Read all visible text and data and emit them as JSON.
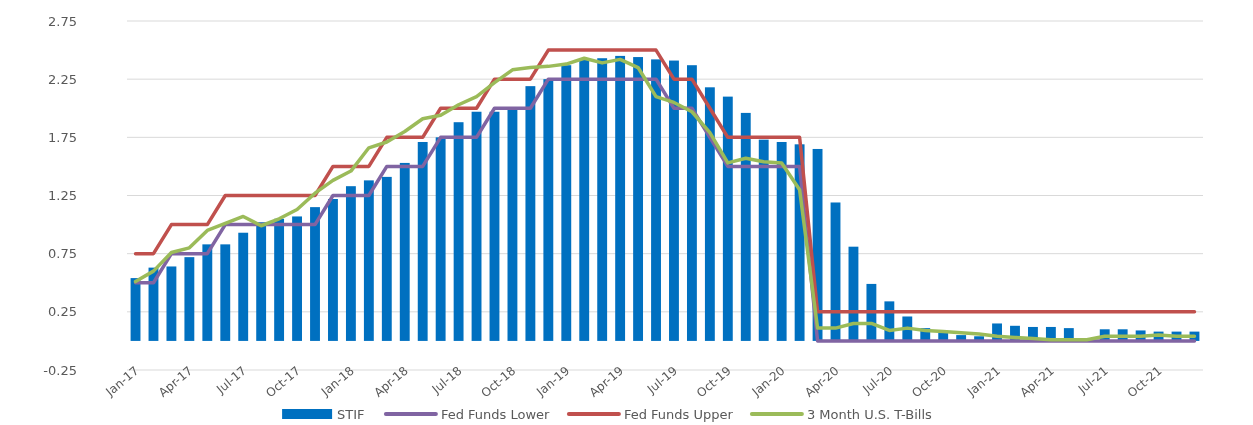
{
  "chart_data": {
    "type": "bar",
    "categories": [
      "Jan-17",
      null,
      null,
      "Apr-17",
      null,
      null,
      "Jul-17",
      null,
      null,
      "Oct-17",
      null,
      null,
      "Jan-18",
      null,
      null,
      "Apr-18",
      null,
      null,
      "Jul-18",
      null,
      null,
      "Oct-18",
      null,
      null,
      "Jan-19",
      null,
      null,
      "Apr-19",
      null,
      null,
      "Jul-19",
      null,
      null,
      "Oct-19",
      null,
      null,
      "Jan-20",
      null,
      null,
      "Apr-20",
      null,
      null,
      "Jul-20",
      null,
      null,
      "Oct-20",
      null,
      null,
      "Jan-21",
      null,
      null,
      "Apr-21",
      null,
      null,
      "Jul-21",
      null,
      null,
      "Oct-21",
      null,
      null
    ],
    "series": [
      {
        "name": "STIF",
        "color": "#0070c0",
        "values": [
          0.54,
          0.63,
          0.64,
          0.72,
          0.83,
          0.83,
          0.93,
          1.02,
          1.05,
          1.07,
          1.15,
          1.22,
          1.33,
          1.38,
          1.41,
          1.53,
          1.71,
          1.75,
          1.88,
          1.97,
          1.97,
          1.99,
          2.19,
          2.25,
          2.37,
          2.42,
          2.43,
          2.45,
          2.44,
          2.42,
          2.41,
          2.37,
          2.18,
          2.1,
          1.96,
          1.73,
          1.71,
          1.69,
          1.65,
          1.19,
          0.81,
          0.49,
          0.34,
          0.21,
          0.11,
          0.07,
          0.05,
          0.04,
          0.15,
          0.13,
          0.12,
          0.12,
          0.11,
          null,
          0.1,
          0.1,
          0.09,
          0.08,
          0.08,
          0.08
        ]
      },
      {
        "name": "Fed Funds Lower",
        "type": "line",
        "color": "#8064a2",
        "values": [
          0.5,
          0.5,
          0.75,
          0.75,
          0.75,
          1,
          1,
          1,
          1,
          1,
          1,
          1.25,
          1.25,
          1.25,
          1.5,
          1.5,
          1.5,
          1.75,
          1.75,
          1.75,
          2,
          2,
          2,
          2.25,
          2.25,
          2.25,
          2.25,
          2.25,
          2.25,
          2.25,
          2,
          2,
          1.75,
          1.5,
          1.5,
          1.5,
          1.5,
          1.5,
          0,
          0,
          0,
          0,
          0,
          0,
          0,
          0,
          0,
          0,
          0,
          0,
          0,
          0,
          0,
          0,
          0,
          0,
          0,
          0,
          0,
          0
        ]
      },
      {
        "name": "Fed Funds Upper",
        "type": "line",
        "color": "#c0504d",
        "values": [
          0.75,
          0.75,
          1,
          1,
          1,
          1.25,
          1.25,
          1.25,
          1.25,
          1.25,
          1.25,
          1.5,
          1.5,
          1.5,
          1.75,
          1.75,
          1.75,
          2,
          2,
          2,
          2.25,
          2.25,
          2.25,
          2.5,
          2.5,
          2.5,
          2.5,
          2.5,
          2.5,
          2.5,
          2.25,
          2.25,
          2,
          1.75,
          1.75,
          1.75,
          1.75,
          1.75,
          0.25,
          0.25,
          0.25,
          0.25,
          0.25,
          0.25,
          0.25,
          0.25,
          0.25,
          0.25,
          0.25,
          0.25,
          0.25,
          0.25,
          0.25,
          0.25,
          0.25,
          0.25,
          0.25,
          0.25,
          0.25,
          0.25
        ]
      },
      {
        "name": "3 Month U.S. T-Bills",
        "type": "line",
        "color": "#9bbb59",
        "values": [
          0.51,
          0.6,
          0.76,
          0.8,
          0.95,
          1.01,
          1.07,
          0.99,
          1.05,
          1.13,
          1.27,
          1.38,
          1.46,
          1.66,
          1.71,
          1.8,
          1.91,
          1.94,
          2.03,
          2.1,
          2.22,
          2.33,
          2.35,
          2.36,
          2.38,
          2.43,
          2.39,
          2.42,
          2.35,
          2.1,
          2.05,
          1.97,
          1.79,
          1.53,
          1.57,
          1.54,
          1.53,
          1.3,
          0.11,
          0.11,
          0.15,
          0.15,
          0.09,
          0.11,
          0.09,
          0.08,
          0.07,
          0.06,
          0.04,
          0.03,
          0.02,
          0.01,
          0.01,
          0.01,
          0.04,
          0.04,
          0.04,
          0.05,
          0.04,
          0.04
        ]
      }
    ],
    "ylim": [
      -0.25,
      2.75
    ],
    "yticks": [
      -0.25,
      0.25,
      0.75,
      1.25,
      1.75,
      2.25,
      2.75
    ],
    "grid": "y",
    "legend": "bottom"
  }
}
